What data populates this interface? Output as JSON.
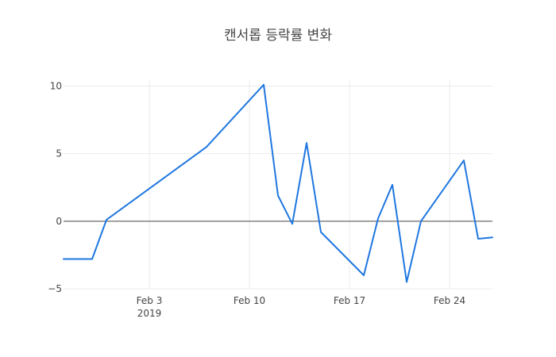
{
  "chart_data": {
    "type": "line",
    "title": "캔서롭 등락률 변화",
    "xlabel": "",
    "ylabel": "",
    "x": [
      "2019-01-28",
      "2019-01-30",
      "2019-01-31",
      "2019-02-07",
      "2019-02-11",
      "2019-02-12",
      "2019-02-13",
      "2019-02-14",
      "2019-02-15",
      "2019-02-18",
      "2019-02-19",
      "2019-02-20",
      "2019-02-21",
      "2019-02-22",
      "2019-02-25",
      "2019-02-26",
      "2019-02-27"
    ],
    "series": [
      {
        "values": [
          -2.8,
          -2.8,
          0.1,
          5.5,
          10.1,
          1.9,
          -0.2,
          5.8,
          -0.8,
          -4.0,
          0.2,
          2.7,
          -4.5,
          0.0,
          4.5,
          -1.3,
          -1.2
        ],
        "color": "#1f77e0"
      }
    ],
    "x_range": [
      "2019-01-28",
      "2019-02-27"
    ],
    "ylim": [
      -5,
      10.5
    ],
    "x_ticks": [
      {
        "date": "2019-02-03",
        "label": "Feb 3",
        "sublabel": "2019"
      },
      {
        "date": "2019-02-10",
        "label": "Feb 10",
        "sublabel": ""
      },
      {
        "date": "2019-02-17",
        "label": "Feb 17",
        "sublabel": ""
      },
      {
        "date": "2019-02-24",
        "label": "Feb 24",
        "sublabel": ""
      }
    ],
    "y_ticks": [
      {
        "value": -5,
        "label": "−5"
      },
      {
        "value": 0,
        "label": "0"
      },
      {
        "value": 5,
        "label": "5"
      },
      {
        "value": 10,
        "label": "10"
      }
    ],
    "grid": true,
    "zero_line": true,
    "legend": "none"
  }
}
